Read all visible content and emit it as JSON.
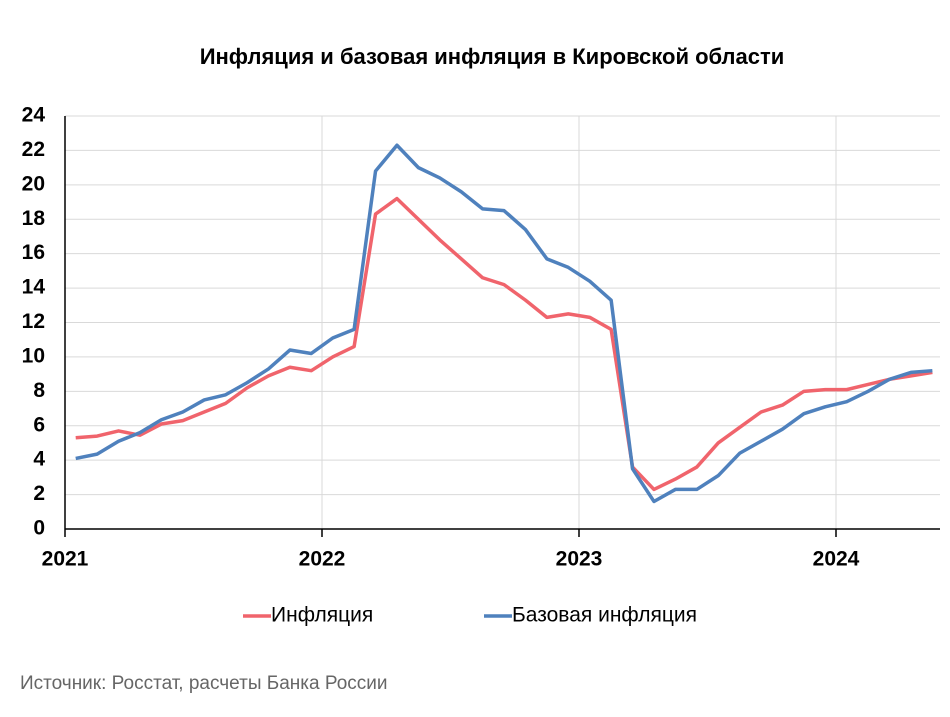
{
  "chart_data": {
    "type": "line",
    "title": "Инфляция и базовая инфляция в Кировской области",
    "source": "Источник: Росстат, расчеты Банка России",
    "categories": [
      "2021",
      null,
      null,
      null,
      null,
      null,
      null,
      null,
      null,
      null,
      null,
      null,
      "2022",
      null,
      null,
      null,
      null,
      null,
      null,
      null,
      null,
      null,
      null,
      null,
      "2023",
      null,
      null,
      null,
      null,
      null,
      null,
      null,
      null,
      null,
      null,
      null,
      "2024",
      null,
      null,
      null,
      null
    ],
    "series": [
      {
        "name": "Инфляция",
        "color": "#f0646c",
        "values": [
          5.3,
          5.4,
          5.7,
          5.45,
          6.1,
          6.3,
          6.8,
          7.3,
          8.2,
          8.9,
          9.4,
          9.2,
          10.0,
          10.6,
          18.3,
          19.2,
          18.0,
          16.8,
          15.7,
          14.6,
          14.2,
          13.3,
          12.3,
          12.5,
          12.3,
          11.6,
          3.6,
          2.3,
          2.9,
          3.6,
          5.0,
          5.9,
          6.8,
          7.2,
          8.0,
          8.1,
          8.1,
          8.4,
          8.7,
          8.9,
          9.1
        ]
      },
      {
        "name": "Базовая инфляция",
        "color": "#4f81bd",
        "values": [
          4.1,
          4.35,
          5.1,
          5.6,
          6.35,
          6.8,
          7.5,
          7.8,
          8.5,
          9.3,
          10.4,
          10.2,
          11.1,
          11.6,
          20.8,
          22.3,
          21.0,
          20.4,
          19.6,
          18.6,
          18.5,
          17.4,
          15.7,
          15.2,
          14.4,
          13.3,
          3.5,
          1.6,
          2.3,
          2.3,
          3.1,
          4.4,
          5.1,
          5.8,
          6.7,
          7.1,
          7.4,
          8.0,
          8.7,
          9.1,
          9.2
        ]
      }
    ],
    "ylim": [
      0,
      24
    ],
    "yticks": [
      0,
      2,
      4,
      6,
      8,
      10,
      12,
      14,
      16,
      18,
      20,
      22,
      24
    ],
    "grid": true,
    "legend": "bottom"
  }
}
